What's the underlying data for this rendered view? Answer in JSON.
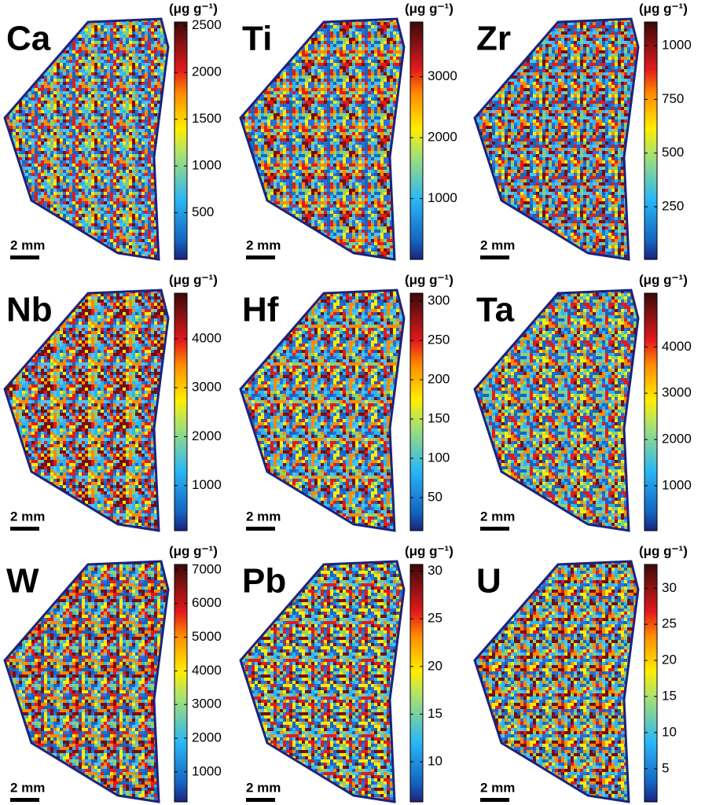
{
  "panels": [
    {
      "element": "Ca",
      "unit": "(μg g⁻¹)",
      "scale_label": "2 mm",
      "range": [
        0,
        2540
      ],
      "ticks": [
        500,
        1000,
        1500,
        2000,
        2500
      ]
    },
    {
      "element": "Ti",
      "unit": "(μg g⁻¹)",
      "scale_label": "2 mm",
      "range": [
        0,
        3900
      ],
      "ticks": [
        1000,
        2000,
        3000
      ]
    },
    {
      "element": "Zr",
      "unit": "(μg g⁻¹)",
      "scale_label": "2 mm",
      "range": [
        5,
        1110
      ],
      "ticks": [
        250,
        500,
        750,
        1000
      ]
    },
    {
      "element": "Nb",
      "unit": "(μg g⁻¹)",
      "scale_label": "2 mm",
      "range": [
        80,
        4930
      ],
      "ticks": [
        1000,
        2000,
        3000,
        4000
      ]
    },
    {
      "element": "Hf",
      "unit": "(μg g⁻¹)",
      "scale_label": "2 mm",
      "range": [
        8,
        310
      ],
      "ticks": [
        50,
        100,
        150,
        200,
        250,
        300
      ]
    },
    {
      "element": "Ta",
      "unit": "(μg g⁻¹)",
      "scale_label": "2 mm",
      "range": [
        30,
        5160
      ],
      "ticks": [
        1000,
        2000,
        3000,
        4000
      ]
    },
    {
      "element": "W",
      "unit": "(μg g⁻¹)",
      "scale_label": "2 mm",
      "range": [
        110,
        7160
      ],
      "ticks": [
        1000,
        2000,
        3000,
        4000,
        5000,
        6000,
        7000
      ]
    },
    {
      "element": "Pb",
      "unit": "(μg g⁻¹)",
      "scale_label": "2 mm",
      "range": [
        5.8,
        30.7
      ],
      "ticks": [
        10,
        15,
        20,
        25,
        30
      ]
    },
    {
      "element": "U",
      "unit": "(μg g⁻¹)",
      "scale_label": "2 mm",
      "range": [
        0.4,
        33.3
      ],
      "ticks": [
        5,
        10,
        15,
        20,
        25,
        30
      ]
    }
  ]
}
